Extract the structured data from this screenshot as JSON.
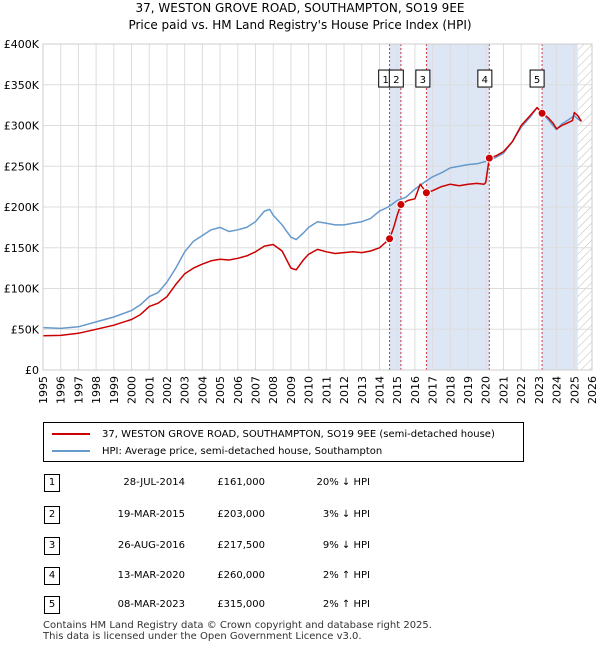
{
  "chart_data": {
    "type": "line",
    "title": "37, WESTON GROVE ROAD, SOUTHAMPTON, SO19 9EE",
    "subtitle": "Price paid vs. HM Land Registry's House Price Index (HPI)",
    "xlim": [
      1995,
      2026
    ],
    "ylim": [
      0,
      400000
    ],
    "y_ticks": [
      0,
      50000,
      100000,
      150000,
      200000,
      250000,
      300000,
      350000,
      400000
    ],
    "y_tick_labels": [
      "£0",
      "£50K",
      "£100K",
      "£150K",
      "£200K",
      "£250K",
      "£300K",
      "£350K",
      "£400K"
    ],
    "x_ticks": [
      1995,
      1996,
      1997,
      1998,
      1999,
      2000,
      2001,
      2002,
      2003,
      2004,
      2005,
      2006,
      2007,
      2008,
      2009,
      2010,
      2011,
      2012,
      2013,
      2014,
      2015,
      2016,
      2017,
      2018,
      2019,
      2020,
      2021,
      2022,
      2023,
      2024,
      2025,
      2026
    ],
    "x_tick_labels": [
      "1995",
      "1996",
      "1997",
      "1998",
      "1999",
      "2000",
      "2001",
      "2002",
      "2003",
      "2004",
      "2005",
      "2006",
      "2007",
      "2008",
      "2009",
      "2010",
      "2011",
      "2012",
      "2013",
      "2014",
      "2015",
      "2016",
      "2017",
      "2018",
      "2019",
      "2020",
      "2021",
      "2022",
      "2023",
      "2024",
      "2025",
      "2026"
    ],
    "shaded_spans": [
      [
        2014.57,
        2015.21
      ],
      [
        2016.65,
        2020.2
      ],
      [
        2023.18,
        2025.2
      ]
    ],
    "hatched_from": 2025.2,
    "series": [
      {
        "name": "37, WESTON GROVE ROAD, SOUTHAMPTON, SO19 9EE (semi-detached house)",
        "color": "#cc0000",
        "points": [
          [
            1995.0,
            42000
          ],
          [
            1996.0,
            42500
          ],
          [
            1997.0,
            45000
          ],
          [
            1998.0,
            50000
          ],
          [
            1999.0,
            55000
          ],
          [
            2000.0,
            62000
          ],
          [
            2000.5,
            68000
          ],
          [
            2001.0,
            78000
          ],
          [
            2001.5,
            82000
          ],
          [
            2002.0,
            90000
          ],
          [
            2002.5,
            105000
          ],
          [
            2003.0,
            118000
          ],
          [
            2003.5,
            125000
          ],
          [
            2004.0,
            130000
          ],
          [
            2004.5,
            134000
          ],
          [
            2005.0,
            136000
          ],
          [
            2005.5,
            135000
          ],
          [
            2006.0,
            137000
          ],
          [
            2006.5,
            140000
          ],
          [
            2007.0,
            145000
          ],
          [
            2007.5,
            152000
          ],
          [
            2008.0,
            154000
          ],
          [
            2008.5,
            146000
          ],
          [
            2009.0,
            125000
          ],
          [
            2009.3,
            123000
          ],
          [
            2009.7,
            135000
          ],
          [
            2010.0,
            142000
          ],
          [
            2010.5,
            148000
          ],
          [
            2011.0,
            145000
          ],
          [
            2011.5,
            143000
          ],
          [
            2012.0,
            144000
          ],
          [
            2012.5,
            145000
          ],
          [
            2013.0,
            144000
          ],
          [
            2013.5,
            146000
          ],
          [
            2014.0,
            150000
          ],
          [
            2014.57,
            161000
          ],
          [
            2014.8,
            175000
          ],
          [
            2015.0,
            190000
          ],
          [
            2015.21,
            203000
          ],
          [
            2015.6,
            208000
          ],
          [
            2016.0,
            210000
          ],
          [
            2016.3,
            228000
          ],
          [
            2016.65,
            217500
          ],
          [
            2017.0,
            220000
          ],
          [
            2017.5,
            225000
          ],
          [
            2018.0,
            228000
          ],
          [
            2018.5,
            226000
          ],
          [
            2019.0,
            228000
          ],
          [
            2019.5,
            229000
          ],
          [
            2019.9,
            228000
          ],
          [
            2020.0,
            230000
          ],
          [
            2020.2,
            260000
          ],
          [
            2020.6,
            263000
          ],
          [
            2021.0,
            268000
          ],
          [
            2021.5,
            280000
          ],
          [
            2022.0,
            300000
          ],
          [
            2022.5,
            312000
          ],
          [
            2022.9,
            322000
          ],
          [
            2023.18,
            315000
          ],
          [
            2023.5,
            310000
          ],
          [
            2023.8,
            303000
          ],
          [
            2024.0,
            296000
          ],
          [
            2024.3,
            300000
          ],
          [
            2024.6,
            303000
          ],
          [
            2024.9,
            306000
          ],
          [
            2025.0,
            316000
          ],
          [
            2025.2,
            312000
          ],
          [
            2025.4,
            305000
          ]
        ]
      },
      {
        "name": "HPI: Average price, semi-detached house, Southampton",
        "color": "#6699cc",
        "points": [
          [
            1995.0,
            52000
          ],
          [
            1996.0,
            51000
          ],
          [
            1997.0,
            53000
          ],
          [
            1998.0,
            59000
          ],
          [
            1999.0,
            65000
          ],
          [
            2000.0,
            73000
          ],
          [
            2000.5,
            80000
          ],
          [
            2001.0,
            90000
          ],
          [
            2001.5,
            95000
          ],
          [
            2002.0,
            108000
          ],
          [
            2002.5,
            125000
          ],
          [
            2003.0,
            145000
          ],
          [
            2003.5,
            158000
          ],
          [
            2004.0,
            165000
          ],
          [
            2004.5,
            172000
          ],
          [
            2005.0,
            175000
          ],
          [
            2005.5,
            170000
          ],
          [
            2006.0,
            172000
          ],
          [
            2006.5,
            175000
          ],
          [
            2007.0,
            182000
          ],
          [
            2007.5,
            195000
          ],
          [
            2007.8,
            197000
          ],
          [
            2008.0,
            190000
          ],
          [
            2008.5,
            178000
          ],
          [
            2009.0,
            163000
          ],
          [
            2009.3,
            160000
          ],
          [
            2009.7,
            168000
          ],
          [
            2010.0,
            175000
          ],
          [
            2010.5,
            182000
          ],
          [
            2011.0,
            180000
          ],
          [
            2011.5,
            178000
          ],
          [
            2012.0,
            178000
          ],
          [
            2012.5,
            180000
          ],
          [
            2013.0,
            182000
          ],
          [
            2013.5,
            186000
          ],
          [
            2014.0,
            195000
          ],
          [
            2014.5,
            200000
          ],
          [
            2015.0,
            208000
          ],
          [
            2015.5,
            212000
          ],
          [
            2016.0,
            222000
          ],
          [
            2016.5,
            230000
          ],
          [
            2017.0,
            237000
          ],
          [
            2017.5,
            242000
          ],
          [
            2018.0,
            248000
          ],
          [
            2018.5,
            250000
          ],
          [
            2019.0,
            252000
          ],
          [
            2019.5,
            253000
          ],
          [
            2020.0,
            256000
          ],
          [
            2020.5,
            260000
          ],
          [
            2021.0,
            266000
          ],
          [
            2021.5,
            280000
          ],
          [
            2022.0,
            298000
          ],
          [
            2022.5,
            310000
          ],
          [
            2022.9,
            322000
          ],
          [
            2023.2,
            315000
          ],
          [
            2023.5,
            308000
          ],
          [
            2023.8,
            300000
          ],
          [
            2024.0,
            295000
          ],
          [
            2024.3,
            302000
          ],
          [
            2024.6,
            306000
          ],
          [
            2025.0,
            312000
          ],
          [
            2025.2,
            308000
          ],
          [
            2025.4,
            305000
          ]
        ]
      }
    ],
    "sales": [
      {
        "id": "1",
        "year": 2014.57,
        "price": 161000,
        "label_x": 2014.35
      },
      {
        "id": "2",
        "year": 2015.21,
        "price": 203000,
        "label_x": 2014.95
      },
      {
        "id": "3",
        "year": 2016.65,
        "price": 217500,
        "label_x": 2016.45
      },
      {
        "id": "4",
        "year": 2020.2,
        "price": 260000,
        "label_x": 2019.95
      },
      {
        "id": "5",
        "year": 2023.18,
        "price": 315000,
        "label_x": 2022.9
      }
    ]
  },
  "legend": {
    "property_label": "37, WESTON GROVE ROAD, SOUTHAMPTON, SO19 9EE (semi-detached house)",
    "hpi_label": "HPI: Average price, semi-detached house, Southampton"
  },
  "transactions": [
    {
      "num": "1",
      "date": "28-JUL-2014",
      "price": "£161,000",
      "hpi": "20% ↓ HPI"
    },
    {
      "num": "2",
      "date": "19-MAR-2015",
      "price": "£203,000",
      "hpi": "3% ↓ HPI"
    },
    {
      "num": "3",
      "date": "26-AUG-2016",
      "price": "£217,500",
      "hpi": "9% ↓ HPI"
    },
    {
      "num": "4",
      "date": "13-MAR-2020",
      "price": "£260,000",
      "hpi": "2% ↑ HPI"
    },
    {
      "num": "5",
      "date": "08-MAR-2023",
      "price": "£315,000",
      "hpi": "2% ↑ HPI"
    }
  ],
  "footer": {
    "line1": "Contains HM Land Registry data © Crown copyright and database right 2025.",
    "line2": "This data is licensed under the Open Government Licence v3.0."
  }
}
